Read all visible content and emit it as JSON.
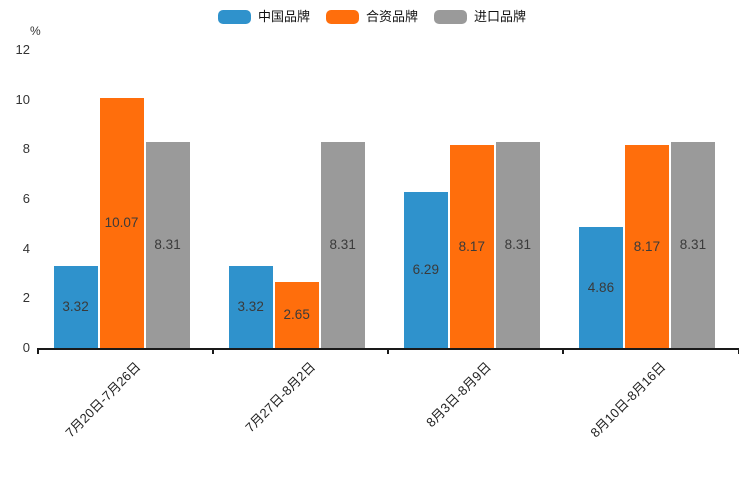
{
  "chart_data": {
    "type": "bar",
    "title": "",
    "xlabel": "",
    "ylabel": "%",
    "categories": [
      "7月20日-7月26日",
      "7月27日-8月2日",
      "8月3日-8月9日",
      "8月10日-8月16日"
    ],
    "series": [
      {
        "name": "中国品牌",
        "color": "#2F92CC",
        "values": [
          3.32,
          3.32,
          6.29,
          4.86
        ]
      },
      {
        "name": "合资品牌",
        "color": "#FF6E0C",
        "values": [
          10.07,
          2.65,
          8.17,
          8.17
        ]
      },
      {
        "name": "进口品牌",
        "color": "#9A9A9A",
        "values": [
          8.31,
          8.31,
          8.31,
          8.31
        ]
      }
    ],
    "ylim": [
      0,
      12
    ],
    "yticks": [
      0,
      2,
      4,
      6,
      8,
      10,
      12
    ],
    "grid": false,
    "legend_position": "top",
    "value_labels": true
  },
  "colors": {
    "axis": "#1a1a1a",
    "label_text": "#3a3a3a"
  }
}
